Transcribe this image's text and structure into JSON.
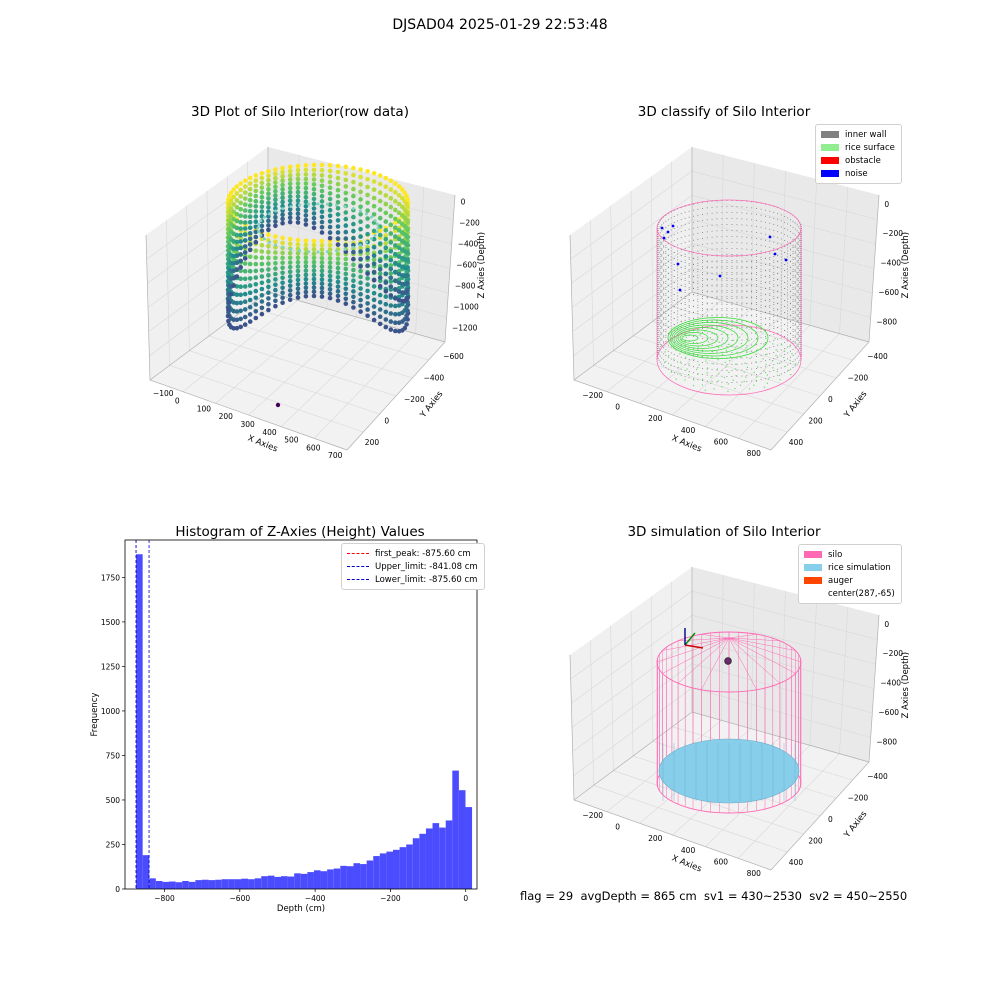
{
  "title": "DJSAD04 2025-01-29 22:53:48",
  "status_line": "flag = 29  avgDepth = 865 cm  sv1 = 430~2530  sv2 = 450~2550",
  "colors": {
    "histogram_bar": "#4c4cff",
    "peak_line": "#ff0000",
    "limit_line": "#0000cc",
    "inner_wall": "#808080",
    "rice_surface": "#90ee90",
    "obstacle": "#ff0000",
    "noise": "#0000ff",
    "silo": "#ff69b4",
    "rice_simulation": "#87ceeb",
    "auger": "#ff4500"
  },
  "chart_data": [
    {
      "id": "raw",
      "type": "scatter",
      "title": "3D Plot of Silo Interior(row data)",
      "xlabel": "X Axies",
      "ylabel": "Y Axies",
      "zlabel": "Z Axies (Depth)",
      "x_ticks": [
        "−100",
        "0",
        "100",
        "200",
        "300",
        "400",
        "500",
        "600",
        "700"
      ],
      "y_ticks": [
        "200",
        "0",
        "−200",
        "−400",
        "−600"
      ],
      "z_ticks": [
        "0",
        "−200",
        "−400",
        "−600",
        "−800",
        "−1000",
        "−1200"
      ]
    },
    {
      "id": "classify",
      "type": "scatter",
      "title": "3D classify of Silo Interior",
      "xlabel": "X Axies",
      "ylabel": "Y Axies",
      "zlabel": "Z Axies (Depth)",
      "x_ticks": [
        "−200",
        "0",
        "200",
        "400",
        "600",
        "800"
      ],
      "y_ticks": [
        "400",
        "200",
        "0",
        "−200",
        "−400"
      ],
      "z_ticks": [
        "0",
        "−200",
        "−400",
        "−600",
        "−800"
      ],
      "legend": [
        "inner wall",
        "rice surface",
        "obstacle",
        "noise"
      ],
      "legend_position": "top-right"
    },
    {
      "id": "histogram",
      "type": "bar",
      "title": "Histogram of Z-Axies (Height) Values",
      "xlabel": "Depth (cm)",
      "ylabel": "Frequency",
      "xlim": [
        -905,
        30
      ],
      "ylim": [
        0,
        1960
      ],
      "x_ticks": [
        -800,
        -600,
        -400,
        -200,
        0
      ],
      "x_tick_labels": [
        "−800",
        "−600",
        "−400",
        "−200",
        "0"
      ],
      "y_ticks": [
        0,
        250,
        500,
        750,
        1000,
        1250,
        1500,
        1750
      ],
      "y_tick_labels": [
        "0",
        "250",
        "500",
        "750",
        "1000",
        "1250",
        "1500",
        "1750"
      ],
      "bin_start": -875.6,
      "bin_width": 17.5,
      "values": [
        1880,
        190,
        60,
        45,
        40,
        42,
        38,
        45,
        40,
        50,
        52,
        50,
        52,
        55,
        55,
        55,
        58,
        55,
        60,
        72,
        75,
        68,
        72,
        70,
        88,
        85,
        95,
        105,
        100,
        110,
        115,
        130,
        128,
        145,
        140,
        160,
        185,
        200,
        210,
        220,
        235,
        250,
        285,
        310,
        340,
        370,
        345,
        385,
        665,
        555,
        460
      ],
      "vlines": [
        {
          "label": "first_peak: -875.60 cm",
          "x": -875.6,
          "color": "#ff0000"
        },
        {
          "label": "Upper_limit: -841.08 cm",
          "x": -841.08,
          "color": "#0000cc"
        },
        {
          "label": "Lower_limit: -875.60 cm",
          "x": -875.6,
          "color": "#0000cc"
        }
      ],
      "legend_position": "top-right"
    },
    {
      "id": "simulation",
      "type": "scatter",
      "title": "3D simulation of Silo Interior",
      "xlabel": "X Axies",
      "ylabel": "Y Axies",
      "zlabel": "Z Axies (Depth)",
      "x_ticks": [
        "−200",
        "0",
        "200",
        "400",
        "600",
        "800"
      ],
      "y_ticks": [
        "400",
        "200",
        "0",
        "−200",
        "−400"
      ],
      "z_ticks": [
        "0",
        "−200",
        "−400",
        "−600",
        "−800"
      ],
      "legend": [
        "silo",
        "rice simulation",
        "auger",
        "center(287,-65)"
      ],
      "legend_position": "top-right"
    }
  ]
}
